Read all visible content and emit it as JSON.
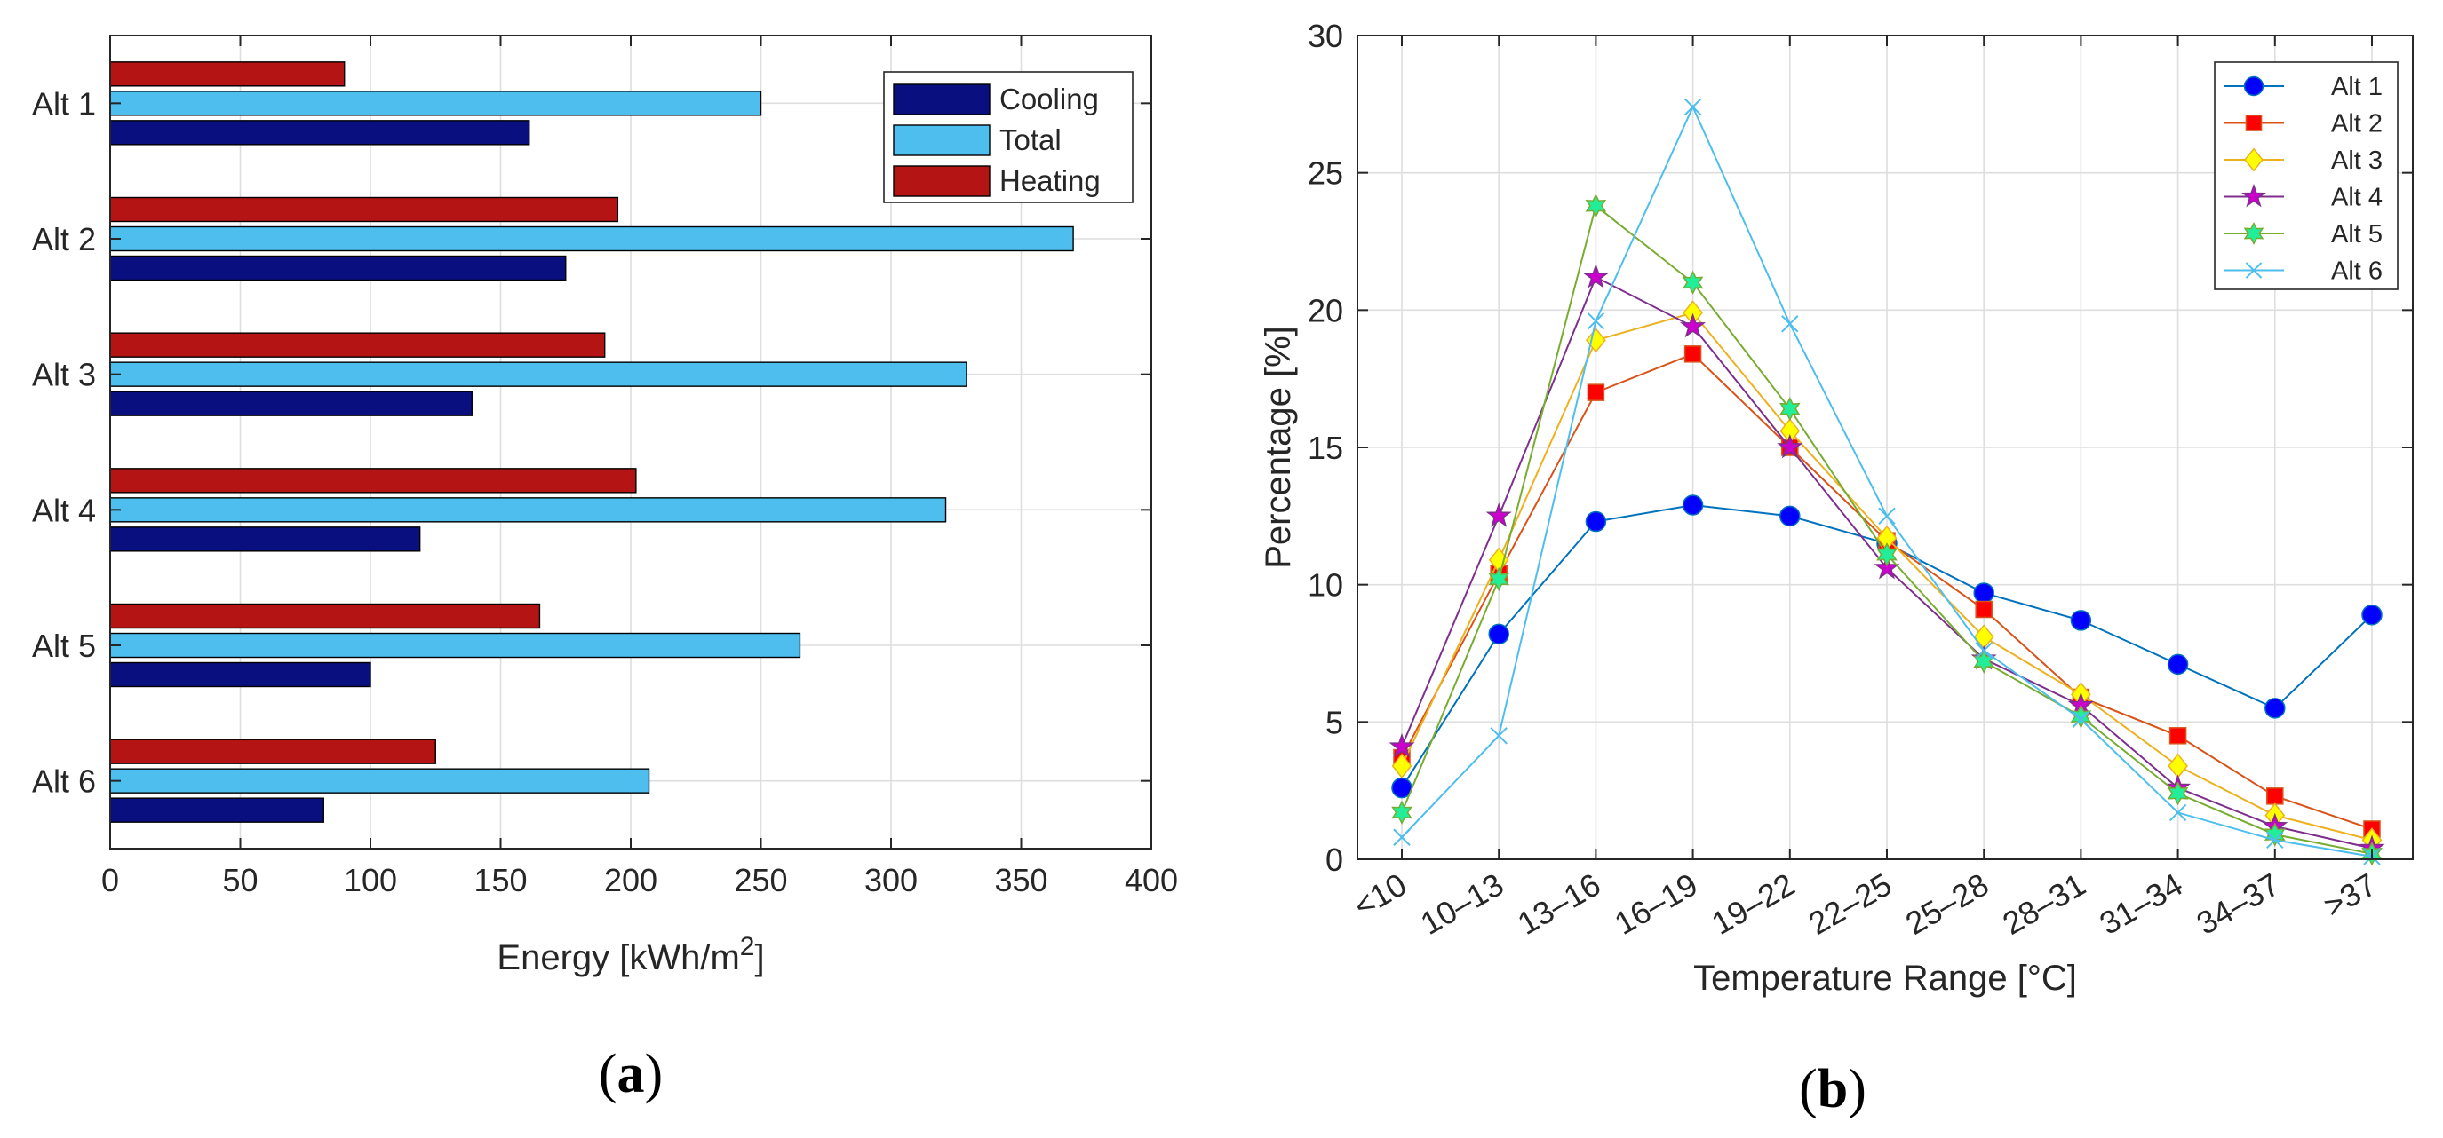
{
  "chart_data": [
    {
      "type": "bar",
      "orientation": "horizontal",
      "panel_label": "(a)",
      "panel_letter": "a",
      "categories": [
        "Alt 1",
        "Alt 2",
        "Alt 3",
        "Alt 4",
        "Alt 5",
        "Alt 6"
      ],
      "series": [
        {
          "name": "Cooling",
          "color": "#0a0f80",
          "values": [
            161,
            175,
            139,
            119,
            100,
            82
          ]
        },
        {
          "name": "Total",
          "color": "#4dbeee",
          "values": [
            250,
            370,
            329,
            321,
            265,
            207
          ]
        },
        {
          "name": "Heating",
          "color": "#b41414",
          "values": [
            90,
            195,
            190,
            202,
            165,
            125
          ]
        }
      ],
      "xlabel_main": "Energy [kWh/m",
      "xlabel_sup": "2",
      "xlabel_end": "]",
      "xlim": [
        0,
        400
      ],
      "xticks": [
        "0",
        "50",
        "100",
        "150",
        "200",
        "250",
        "300",
        "350",
        "400"
      ],
      "grid": true,
      "legend_position": "top-right"
    },
    {
      "type": "line",
      "panel_label": "(b)",
      "panel_letter": "b",
      "categories": [
        "<10",
        "10–13",
        "13–16",
        "16–19",
        "19–22",
        "22–25",
        "25–28",
        "28–31",
        "31–34",
        "34–37",
        ">37"
      ],
      "series": [
        {
          "name": "Alt 1",
          "color": "#0072bd",
          "marker": "circle",
          "marker_fill": "#0000ff",
          "values": [
            2.6,
            8.2,
            12.3,
            12.9,
            12.5,
            11.5,
            9.7,
            8.7,
            7.1,
            5.5,
            8.9
          ]
        },
        {
          "name": "Alt 2",
          "color": "#d95319",
          "marker": "square",
          "marker_fill": "#ff0000",
          "values": [
            3.7,
            10.4,
            17.0,
            18.4,
            15.0,
            11.6,
            9.1,
            5.9,
            4.5,
            2.3,
            1.1
          ]
        },
        {
          "name": "Alt 3",
          "color": "#edb120",
          "marker": "diamond",
          "marker_fill": "#ffff00",
          "values": [
            3.4,
            10.9,
            18.9,
            19.9,
            15.6,
            11.7,
            8.1,
            6.0,
            3.4,
            1.6,
            0.7
          ]
        },
        {
          "name": "Alt 4",
          "color": "#7e2f8e",
          "marker": "star",
          "marker_fill": "#cc00cc",
          "values": [
            4.1,
            12.5,
            21.2,
            19.4,
            15.0,
            10.6,
            7.3,
            5.6,
            2.6,
            1.2,
            0.4
          ]
        },
        {
          "name": "Alt 5",
          "color": "#77ac30",
          "marker": "hexagram",
          "marker_fill": "#22ee99",
          "values": [
            1.7,
            10.2,
            23.8,
            21.0,
            16.4,
            11.1,
            7.2,
            5.2,
            2.4,
            0.9,
            0.2
          ]
        },
        {
          "name": "Alt 6",
          "color": "#4dbeee",
          "marker": "x",
          "marker_fill": "#4dbeee",
          "values": [
            0.8,
            4.5,
            19.6,
            27.4,
            19.5,
            12.5,
            7.6,
            5.1,
            1.7,
            0.7,
            0.1
          ]
        }
      ],
      "xlabel": "Temperature Range [°C]",
      "ylabel": "Percentage [%]",
      "ylim": [
        0,
        30
      ],
      "yticks": [
        "0",
        "5",
        "10",
        "15",
        "20",
        "25",
        "30"
      ],
      "grid": true,
      "legend_position": "top-right"
    }
  ]
}
